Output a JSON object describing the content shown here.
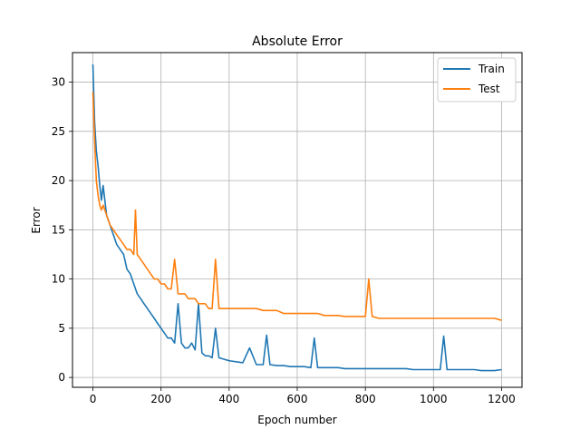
{
  "chart_data": {
    "type": "line",
    "title": "Absolute Error",
    "xlabel": "Epoch number",
    "ylabel": "Error",
    "xlim": [
      -60,
      1260
    ],
    "ylim": [
      -1,
      33
    ],
    "xticks": [
      0,
      200,
      400,
      600,
      800,
      1000,
      1200
    ],
    "yticks": [
      0,
      5,
      10,
      15,
      20,
      25,
      30
    ],
    "grid": true,
    "legend_position": "top-right",
    "series": [
      {
        "name": "Train",
        "color": "#1f77b4",
        "x": [
          0,
          5,
          10,
          15,
          20,
          25,
          30,
          40,
          50,
          60,
          70,
          80,
          90,
          100,
          110,
          120,
          130,
          140,
          150,
          160,
          170,
          180,
          190,
          200,
          210,
          220,
          230,
          240,
          250,
          260,
          270,
          280,
          290,
          300,
          310,
          320,
          330,
          340,
          350,
          360,
          370,
          380,
          390,
          400,
          420,
          440,
          460,
          480,
          500,
          510,
          520,
          540,
          560,
          580,
          600,
          620,
          640,
          650,
          660,
          680,
          700,
          720,
          740,
          760,
          780,
          800,
          820,
          840,
          860,
          880,
          900,
          920,
          940,
          960,
          980,
          1000,
          1020,
          1030,
          1040,
          1060,
          1080,
          1100,
          1120,
          1140,
          1160,
          1180,
          1200
        ],
        "y": [
          31.8,
          26.0,
          23.0,
          21.5,
          19.5,
          18.0,
          19.5,
          16.5,
          15.5,
          14.5,
          13.5,
          13.0,
          12.5,
          11.0,
          10.5,
          9.5,
          8.5,
          8.0,
          7.5,
          7.0,
          6.5,
          6.0,
          5.5,
          5.0,
          4.5,
          4.0,
          4.0,
          3.5,
          7.5,
          3.5,
          3.0,
          3.0,
          3.5,
          2.8,
          7.5,
          2.5,
          2.2,
          2.2,
          2.0,
          5.0,
          2.0,
          1.9,
          1.8,
          1.7,
          1.6,
          1.5,
          3.0,
          1.3,
          1.3,
          4.3,
          1.3,
          1.2,
          1.2,
          1.1,
          1.1,
          1.1,
          1.0,
          4.0,
          1.0,
          1.0,
          1.0,
          1.0,
          0.9,
          0.9,
          0.9,
          0.9,
          0.9,
          0.9,
          0.9,
          0.9,
          0.9,
          0.9,
          0.8,
          0.8,
          0.8,
          0.8,
          0.8,
          4.2,
          0.8,
          0.8,
          0.8,
          0.8,
          0.8,
          0.7,
          0.7,
          0.7,
          0.8
        ]
      },
      {
        "name": "Test",
        "color": "#ff7f0e",
        "x": [
          0,
          5,
          10,
          15,
          20,
          25,
          30,
          40,
          50,
          60,
          70,
          80,
          90,
          100,
          110,
          120,
          125,
          130,
          140,
          150,
          160,
          170,
          180,
          190,
          200,
          210,
          220,
          230,
          240,
          250,
          260,
          270,
          280,
          290,
          300,
          310,
          320,
          330,
          340,
          350,
          360,
          370,
          380,
          400,
          420,
          440,
          460,
          480,
          500,
          520,
          540,
          560,
          580,
          600,
          620,
          640,
          660,
          680,
          700,
          720,
          740,
          760,
          780,
          800,
          810,
          820,
          840,
          860,
          880,
          900,
          920,
          940,
          960,
          980,
          1000,
          1020,
          1040,
          1060,
          1080,
          1100,
          1120,
          1140,
          1160,
          1180,
          1200
        ],
        "y": [
          29.0,
          24.0,
          20.0,
          18.5,
          17.5,
          17.0,
          17.5,
          16.5,
          15.5,
          15.0,
          14.5,
          14.0,
          13.5,
          13.0,
          13.0,
          12.5,
          17.0,
          12.5,
          12.0,
          11.5,
          11.0,
          10.5,
          10.0,
          10.0,
          9.5,
          9.5,
          9.0,
          9.0,
          12.0,
          8.5,
          8.5,
          8.5,
          8.0,
          8.0,
          8.0,
          7.5,
          7.5,
          7.5,
          7.0,
          7.0,
          12.0,
          7.0,
          7.0,
          7.0,
          7.0,
          7.0,
          7.0,
          7.0,
          6.8,
          6.8,
          6.8,
          6.5,
          6.5,
          6.5,
          6.5,
          6.5,
          6.5,
          6.3,
          6.3,
          6.3,
          6.2,
          6.2,
          6.2,
          6.2,
          10.0,
          6.2,
          6.0,
          6.0,
          6.0,
          6.0,
          6.0,
          6.0,
          6.0,
          6.0,
          6.0,
          6.0,
          6.0,
          6.0,
          6.0,
          6.0,
          6.0,
          6.0,
          6.0,
          6.0,
          5.8
        ]
      }
    ]
  }
}
